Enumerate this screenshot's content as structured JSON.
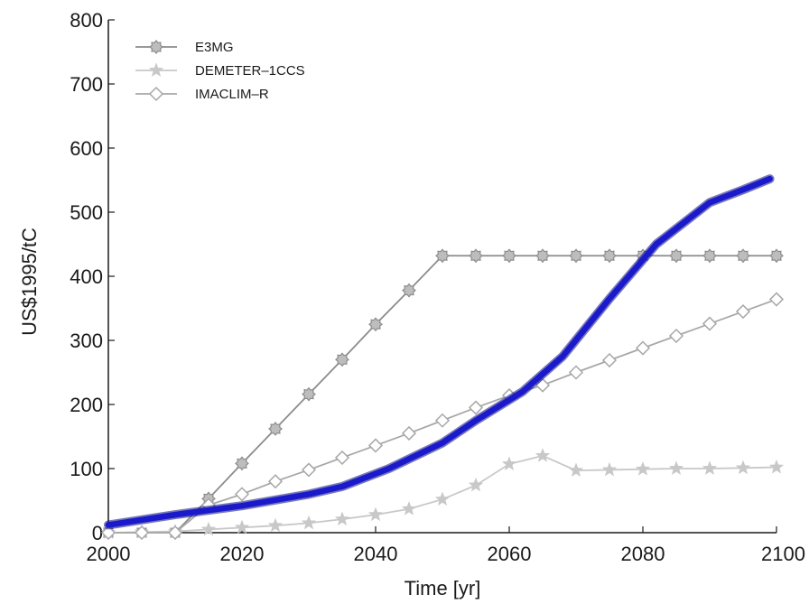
{
  "chart_data": {
    "type": "line",
    "title": "",
    "xlabel": "Time [yr]",
    "ylabel": "US$1995/tC",
    "xlim": [
      2000,
      2100
    ],
    "ylim": [
      0,
      800
    ],
    "xticks": [
      2000,
      2020,
      2040,
      2060,
      2080,
      2100
    ],
    "yticks": [
      0,
      100,
      200,
      300,
      400,
      500,
      600,
      700,
      800
    ],
    "grid": false,
    "legend_position": "top-left",
    "series": [
      {
        "name": "E3MG",
        "color": "#8c8c8c",
        "marker": "gear-circle",
        "x": [
          2000,
          2005,
          2010,
          2015,
          2020,
          2025,
          2030,
          2035,
          2040,
          2045,
          2050,
          2055,
          2060,
          2065,
          2070,
          2075,
          2080,
          2085,
          2090,
          2095,
          2100
        ],
        "y": [
          0,
          0,
          0,
          53,
          108,
          162,
          216,
          270,
          325,
          378,
          432,
          432,
          432,
          432,
          432,
          432,
          432,
          432,
          432,
          432,
          432
        ]
      },
      {
        "name": "DEMETER‒1CCS",
        "color": "#c8c8c8",
        "marker": "star",
        "x": [
          2000,
          2005,
          2010,
          2015,
          2020,
          2025,
          2030,
          2035,
          2040,
          2045,
          2050,
          2055,
          2060,
          2065,
          2070,
          2075,
          2080,
          2085,
          2090,
          2095,
          2100
        ],
        "y": [
          0,
          1,
          2,
          5,
          8,
          11,
          15,
          21,
          28,
          37,
          52,
          74,
          107,
          120,
          97,
          98,
          99,
          100,
          100,
          101,
          102
        ]
      },
      {
        "name": "IMACLIM‒R",
        "color": "#a8a8a8",
        "marker": "diamond",
        "x": [
          2000,
          2005,
          2010,
          2015,
          2020,
          2025,
          2030,
          2035,
          2040,
          2045,
          2050,
          2055,
          2060,
          2065,
          2070,
          2075,
          2080,
          2085,
          2090,
          2095,
          2100
        ],
        "y": [
          0,
          0,
          0,
          43,
          60,
          80,
          98,
          117,
          136,
          155,
          175,
          195,
          214,
          230,
          250,
          269,
          288,
          307,
          326,
          345,
          364
        ]
      },
      {
        "name": "",
        "color": "#1a1acc",
        "marker": "none",
        "x": [
          2000,
          2010,
          2020,
          2030,
          2035,
          2042,
          2050,
          2055,
          2062,
          2068,
          2075,
          2082,
          2090,
          2095,
          2099
        ],
        "y": [
          12,
          28,
          42,
          60,
          72,
          100,
          140,
          175,
          220,
          275,
          365,
          450,
          515,
          535,
          552
        ]
      }
    ]
  }
}
